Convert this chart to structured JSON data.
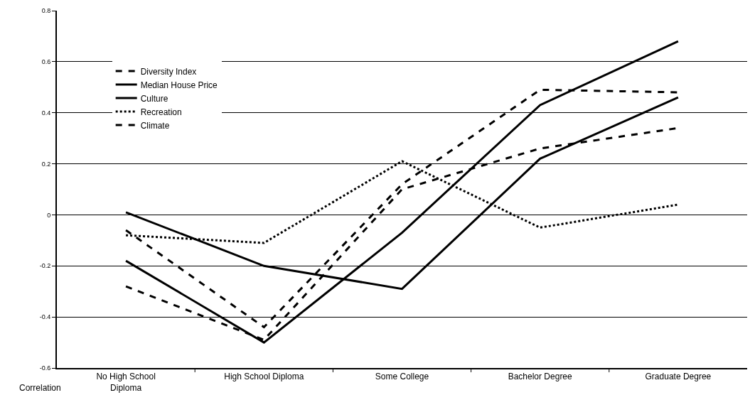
{
  "chart_data": {
    "type": "line",
    "ylabel": "Correlation",
    "categories": [
      "No High School Diploma",
      "High School Diploma",
      "Some College",
      "Bachelor Degree",
      "Graduate Degree"
    ],
    "series": [
      {
        "name": "Diversity Index",
        "color": "#000000",
        "line_style": "dashed",
        "values": [
          -0.06,
          -0.44,
          0.12,
          0.49,
          0.48
        ]
      },
      {
        "name": "Median House Price",
        "color": "#000000",
        "line_style": "solid",
        "values": [
          -0.18,
          -0.5,
          -0.07,
          0.43,
          0.68
        ]
      },
      {
        "name": "Culture",
        "color": "#000000",
        "line_style": "solid",
        "values": [
          0.01,
          -0.2,
          -0.29,
          0.22,
          0.46
        ]
      },
      {
        "name": "Recreation",
        "color": "#000000",
        "line_style": "dotted",
        "values": [
          -0.08,
          -0.11,
          0.21,
          -0.05,
          0.04
        ]
      },
      {
        "name": "Climate",
        "color": "#000000",
        "line_style": "dashed",
        "values": [
          -0.28,
          -0.49,
          0.1,
          0.26,
          0.34
        ]
      }
    ],
    "ylim": [
      -0.6,
      0.8
    ],
    "yticks": [
      -0.6,
      -0.4,
      -0.2,
      0,
      0.2,
      0.4,
      0.6,
      0.8
    ],
    "grid": "y",
    "legend": "top left"
  }
}
